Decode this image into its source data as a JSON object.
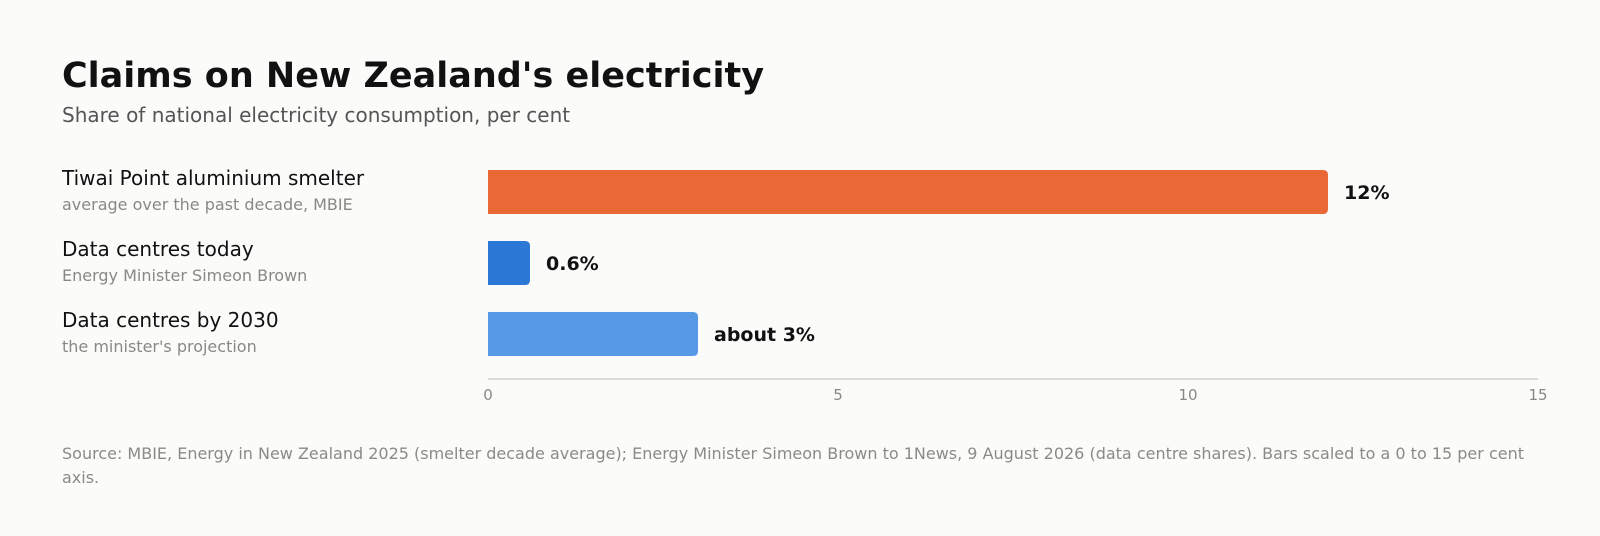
{
  "title": "Claims on New Zealand's electricity",
  "subtitle": "Share of national electricity consumption, per cent",
  "source": "Source: MBIE, Energy in New Zealand 2025 (smelter decade average); Energy Minister Simeon Brown to 1News, 9 August 2026 (data centre shares). Bars scaled to a 0 to 15 per cent axis.",
  "colors": {
    "accent_orange": "#e96836",
    "accent_blue": "#2b78d6",
    "accent_light_blue": "#5799e5",
    "axis": "#b9b9b6",
    "tick_text": "#888884",
    "label_text": "#111111",
    "sublabel_text": "#888884"
  },
  "chart_data": {
    "type": "bar",
    "orientation": "horizontal",
    "categories": [
      "Tiwai Point aluminium smelter",
      "Data centres today",
      "Data centres by 2030"
    ],
    "sublabels": [
      "average over the past decade, MBIE",
      "Energy Minister Simeon Brown",
      "the minister's projection"
    ],
    "values": [
      12,
      0.6,
      3
    ],
    "value_labels": [
      "12%",
      "0.6%",
      "about 3%"
    ],
    "bar_colors": [
      "#e96836",
      "#2b78d6",
      "#5799e5"
    ],
    "xlim": [
      0,
      15
    ],
    "xticks": [
      0,
      5,
      10,
      15
    ],
    "xlabel": "",
    "ylabel": "",
    "grid": false,
    "legend": "none"
  }
}
